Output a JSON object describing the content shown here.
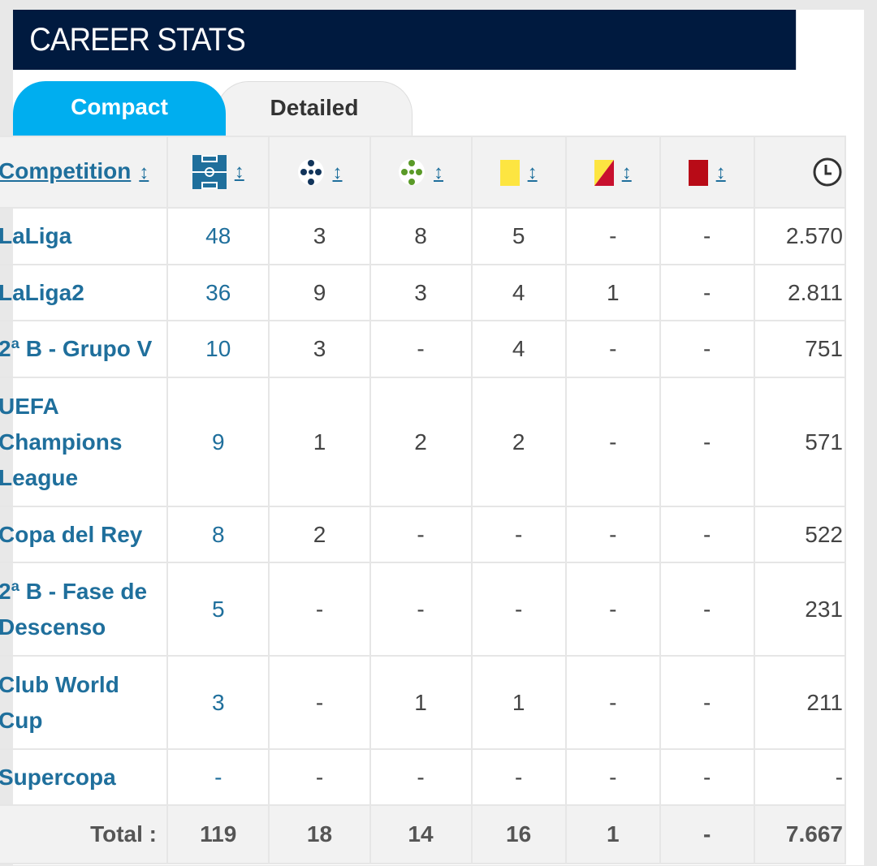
{
  "header": {
    "title": "CAREER STATS"
  },
  "tabs": [
    {
      "label": "Compact",
      "active": true
    },
    {
      "label": "Detailed",
      "active": false
    }
  ],
  "columns": {
    "competition": "Competition",
    "sort_icon": "↕",
    "icons": [
      "pitch-icon",
      "ball-goals-icon",
      "ball-assists-icon",
      "yellow-card-icon",
      "yellow-red-card-icon",
      "red-card-icon",
      "clock-icon"
    ]
  },
  "colors": {
    "header": "#001a3f",
    "tab_active": "#00aeef",
    "link": "#1f6f9c",
    "yellow": "#fde541",
    "red": "#b80b17"
  },
  "rows": [
    {
      "competition": "LaLiga",
      "apps": "48",
      "goals": "3",
      "assists": "8",
      "yellow": "5",
      "yellowred": "-",
      "red": "-",
      "minutes": "2.570"
    },
    {
      "competition": "LaLiga2",
      "apps": "36",
      "goals": "9",
      "assists": "3",
      "yellow": "4",
      "yellowred": "1",
      "red": "-",
      "minutes": "2.811"
    },
    {
      "competition": "2ª B - Grupo V",
      "apps": "10",
      "goals": "3",
      "assists": "-",
      "yellow": "4",
      "yellowred": "-",
      "red": "-",
      "minutes": "751"
    },
    {
      "competition": "UEFA Champions League",
      "apps": "9",
      "goals": "1",
      "assists": "2",
      "yellow": "2",
      "yellowred": "-",
      "red": "-",
      "minutes": "571"
    },
    {
      "competition": "Copa del Rey",
      "apps": "8",
      "goals": "2",
      "assists": "-",
      "yellow": "-",
      "yellowred": "-",
      "red": "-",
      "minutes": "522"
    },
    {
      "competition": "2ª B - Fase de Descenso",
      "apps": "5",
      "goals": "-",
      "assists": "-",
      "yellow": "-",
      "yellowred": "-",
      "red": "-",
      "minutes": "231"
    },
    {
      "competition": "Club World Cup",
      "apps": "3",
      "goals": "-",
      "assists": "1",
      "yellow": "1",
      "yellowred": "-",
      "red": "-",
      "minutes": "211"
    },
    {
      "competition": "Supercopa",
      "apps": "-",
      "goals": "-",
      "assists": "-",
      "yellow": "-",
      "yellowred": "-",
      "red": "-",
      "minutes": "-"
    }
  ],
  "total": {
    "label": "Total :",
    "apps": "119",
    "goals": "18",
    "assists": "14",
    "yellow": "16",
    "yellowred": "1",
    "red": "-",
    "minutes": "7.667"
  }
}
